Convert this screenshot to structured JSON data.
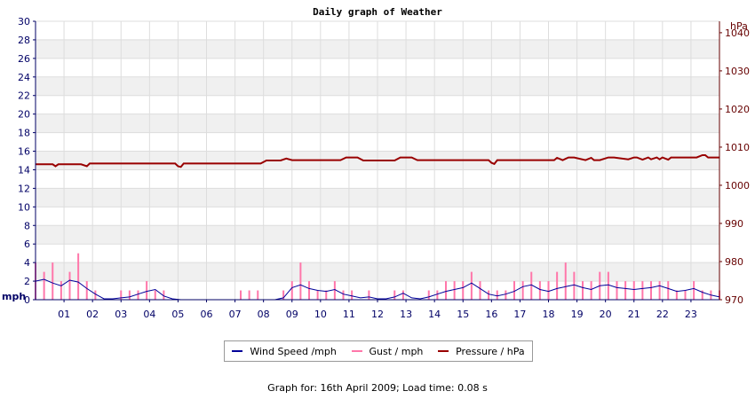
{
  "chart_data": {
    "type": "line",
    "title": "Daily graph of Weather",
    "left_axis": {
      "unit": "mph",
      "range": [
        0,
        30
      ],
      "ticks": [
        "0",
        "2",
        "4",
        "6",
        "8",
        "10",
        "12",
        "14",
        "16",
        "18",
        "20",
        "22",
        "24",
        "26",
        "28",
        "30"
      ]
    },
    "right_axis": {
      "unit": "hPa",
      "range": [
        970,
        1043
      ],
      "ticks": [
        "970",
        "980",
        "990",
        "1000",
        "1010",
        "1020",
        "1030",
        "1040"
      ]
    },
    "x_axis": {
      "range": [
        0,
        24
      ],
      "ticks": [
        "01",
        "02",
        "03",
        "04",
        "05",
        "06",
        "07",
        "08",
        "09",
        "10",
        "11",
        "12",
        "13",
        "14",
        "15",
        "16",
        "17",
        "18",
        "19",
        "20",
        "21",
        "22",
        "23"
      ]
    },
    "grid": true,
    "legend_position": "bottom",
    "series": [
      {
        "name": "Wind Speed /mph",
        "axis": "left",
        "color": "#000099",
        "x": [
          0,
          0.3,
          0.6,
          0.9,
          1.2,
          1.5,
          1.8,
          2.1,
          2.4,
          2.7,
          3,
          3.3,
          3.6,
          3.9,
          4.2,
          4.5,
          4.8,
          5.1,
          5.4,
          5.7,
          6,
          6.3,
          6.6,
          6.9,
          7.2,
          7.5,
          7.8,
          8.1,
          8.4,
          8.7,
          9,
          9.3,
          9.6,
          9.9,
          10.2,
          10.5,
          10.8,
          11.1,
          11.4,
          11.7,
          12,
          12.3,
          12.6,
          12.9,
          13.2,
          13.5,
          13.8,
          14.1,
          14.4,
          14.7,
          15,
          15.3,
          15.6,
          15.9,
          16.2,
          16.5,
          16.8,
          17.1,
          17.4,
          17.7,
          18,
          18.3,
          18.6,
          18.9,
          19.2,
          19.5,
          19.8,
          20.1,
          20.4,
          20.7,
          21,
          21.3,
          21.6,
          21.9,
          22.2,
          22.5,
          22.8,
          23.1,
          23.4,
          23.7,
          24
        ],
        "y": [
          2,
          2.2,
          1.8,
          1.5,
          2.1,
          1.9,
          1.2,
          0.6,
          0.1,
          0.1,
          0.2,
          0.3,
          0.6,
          0.9,
          1.1,
          0.4,
          0.1,
          0,
          0,
          0,
          0,
          0,
          0,
          0,
          0,
          0,
          0,
          0,
          0,
          0.2,
          1.3,
          1.6,
          1.2,
          1,
          0.9,
          1.1,
          0.6,
          0.4,
          0.2,
          0.3,
          0.1,
          0.1,
          0.3,
          0.7,
          0.2,
          0.1,
          0.3,
          0.6,
          0.9,
          1.1,
          1.3,
          1.8,
          1.2,
          0.6,
          0.4,
          0.6,
          0.9,
          1.4,
          1.6,
          1.1,
          0.9,
          1.2,
          1.4,
          1.6,
          1.3,
          1.1,
          1.5,
          1.6,
          1.3,
          1.2,
          1.1,
          1.2,
          1.3,
          1.5,
          1.2,
          0.9,
          1,
          1.2,
          0.8,
          0.5,
          0.3
        ]
      },
      {
        "name": "Gust / mph",
        "axis": "left",
        "color": "#ff77aa",
        "x": [
          0,
          0.3,
          0.6,
          0.9,
          1.2,
          1.5,
          1.8,
          2.1,
          2.4,
          2.7,
          3,
          3.3,
          3.6,
          3.9,
          4.2,
          4.5,
          4.8,
          5.1,
          5.4,
          5.7,
          6,
          6.3,
          6.6,
          6.9,
          7.2,
          7.5,
          7.8,
          8.1,
          8.4,
          8.7,
          9,
          9.3,
          9.6,
          9.9,
          10.2,
          10.5,
          10.8,
          11.1,
          11.4,
          11.7,
          12,
          12.3,
          12.6,
          12.9,
          13.2,
          13.5,
          13.8,
          14.1,
          14.4,
          14.7,
          15,
          15.3,
          15.6,
          15.9,
          16.2,
          16.5,
          16.8,
          17.1,
          17.4,
          17.7,
          18,
          18.3,
          18.6,
          18.9,
          19.2,
          19.5,
          19.8,
          20.1,
          20.4,
          20.7,
          21,
          21.3,
          21.6,
          21.9,
          22.2,
          22.5,
          22.8,
          23.1,
          23.4,
          23.7,
          24
        ],
        "y": [
          4,
          3,
          4,
          2,
          3,
          5,
          2,
          1,
          0,
          0,
          1,
          1,
          1,
          2,
          1,
          1,
          0,
          0,
          0,
          0,
          0,
          0,
          0,
          0,
          1,
          1,
          1,
          0,
          0,
          1,
          2,
          4,
          2,
          1,
          1,
          2,
          1,
          1,
          0,
          1,
          0,
          0,
          1,
          1,
          0,
          0,
          1,
          1,
          2,
          2,
          2,
          3,
          2,
          1,
          1,
          1,
          2,
          2,
          3,
          2,
          2,
          3,
          4,
          3,
          2,
          2,
          3,
          3,
          2,
          2,
          2,
          2,
          2,
          2,
          2,
          1,
          1,
          2,
          1,
          1,
          1
        ]
      },
      {
        "name": "Pressure / hPa",
        "axis": "right",
        "color": "#990000",
        "x": [
          0,
          0.6,
          0.7,
          0.8,
          1.6,
          1.8,
          1.9,
          4.9,
          5.0,
          5.1,
          5.2,
          7.9,
          8.1,
          8.6,
          8.8,
          9.0,
          10.7,
          10.9,
          11.3,
          11.5,
          12.6,
          12.8,
          13.2,
          13.4,
          15.9,
          16.0,
          16.1,
          16.2,
          18.2,
          18.3,
          18.5,
          18.7,
          18.9,
          19.3,
          19.5,
          19.6,
          19.8,
          20.1,
          20.3,
          20.8,
          21.0,
          21.1,
          21.3,
          21.5,
          21.6,
          21.8,
          21.9,
          22.0,
          22.2,
          22.3,
          22.5,
          22.6,
          22.8,
          23.2,
          23.4,
          23.5,
          23.6,
          24
        ],
        "y": [
          1005.5,
          1005.5,
          1005,
          1005.5,
          1005.5,
          1005,
          1005.7,
          1005.7,
          1005,
          1004.8,
          1005.7,
          1005.7,
          1006.5,
          1006.5,
          1007,
          1006.6,
          1006.6,
          1007.3,
          1007.3,
          1006.5,
          1006.5,
          1007.3,
          1007.3,
          1006.6,
          1006.6,
          1005.9,
          1005.6,
          1006.6,
          1006.6,
          1007.2,
          1006.6,
          1007.3,
          1007.3,
          1006.6,
          1007.2,
          1006.6,
          1006.6,
          1007.3,
          1007.3,
          1006.8,
          1007.3,
          1007.3,
          1006.7,
          1007.3,
          1006.8,
          1007.3,
          1006.8,
          1007.3,
          1006.7,
          1007.3,
          1007.3,
          1007.3,
          1007.3,
          1007.3,
          1007.9,
          1007.9,
          1007.3,
          1007.3
        ]
      }
    ]
  },
  "footer": {
    "text": "Graph for: 16th April 2009; Load time: 0.08 s"
  }
}
